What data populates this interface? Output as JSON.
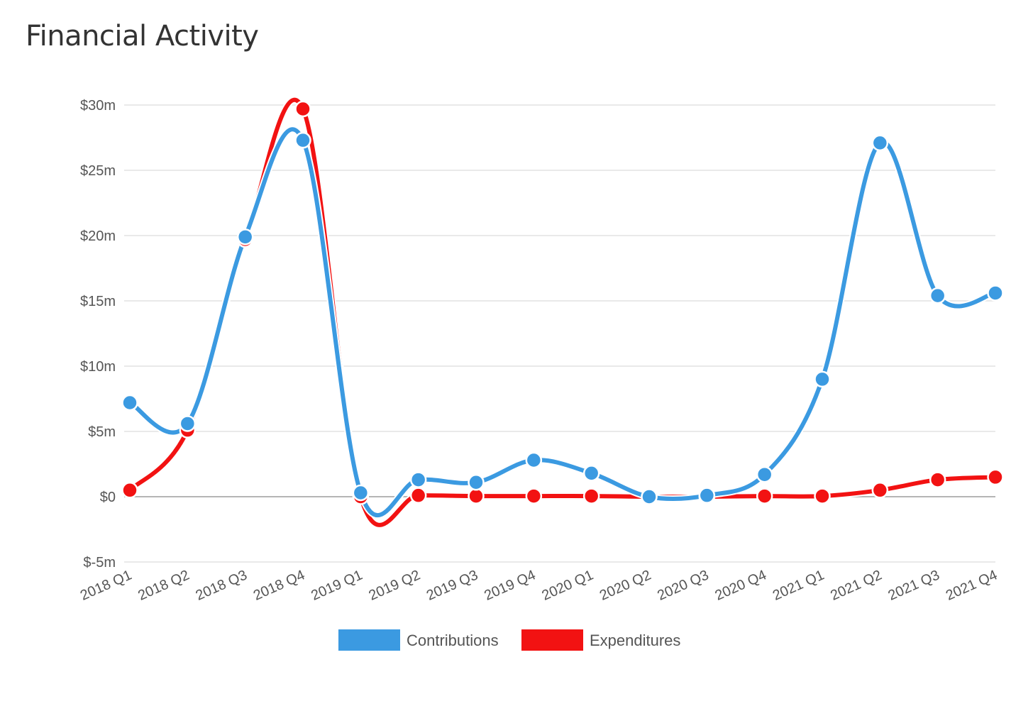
{
  "page": {
    "title": "Financial Activity"
  },
  "chart_data": {
    "type": "line",
    "title": "Financial Activity",
    "xlabel": "",
    "ylabel": "",
    "categories": [
      "2018 Q1",
      "2018 Q2",
      "2018 Q3",
      "2018 Q4",
      "2019 Q1",
      "2019 Q2",
      "2019 Q3",
      "2019 Q4",
      "2020 Q1",
      "2020 Q2",
      "2020 Q3",
      "2020 Q4",
      "2021 Q1",
      "2021 Q2",
      "2021 Q3",
      "2021 Q4"
    ],
    "ylim": [
      -5,
      30
    ],
    "y_ticks": [
      {
        "value": 30,
        "label": "$30m"
      },
      {
        "value": 25,
        "label": "$25m"
      },
      {
        "value": 20,
        "label": "$20m"
      },
      {
        "value": 15,
        "label": "$15m"
      },
      {
        "value": 10,
        "label": "$10m"
      },
      {
        "value": 5,
        "label": "$5m"
      },
      {
        "value": 0,
        "label": "$0"
      },
      {
        "value": -5,
        "label": "$-5m"
      }
    ],
    "grid": true,
    "legend_position": "bottom-center",
    "series": [
      {
        "name": "Contributions",
        "color": "#3b9ae1",
        "values": [
          7.2,
          5.6,
          19.9,
          27.3,
          0.3,
          1.3,
          1.1,
          2.8,
          1.8,
          0.0,
          0.1,
          1.7,
          9.0,
          27.1,
          15.4,
          15.6
        ]
      },
      {
        "name": "Expenditures",
        "color": "#f21212",
        "values": [
          0.5,
          5.1,
          19.7,
          29.7,
          0.0,
          0.1,
          0.05,
          0.05,
          0.05,
          0.0,
          0.0,
          0.05,
          0.05,
          0.5,
          1.3,
          1.5
        ]
      }
    ]
  }
}
